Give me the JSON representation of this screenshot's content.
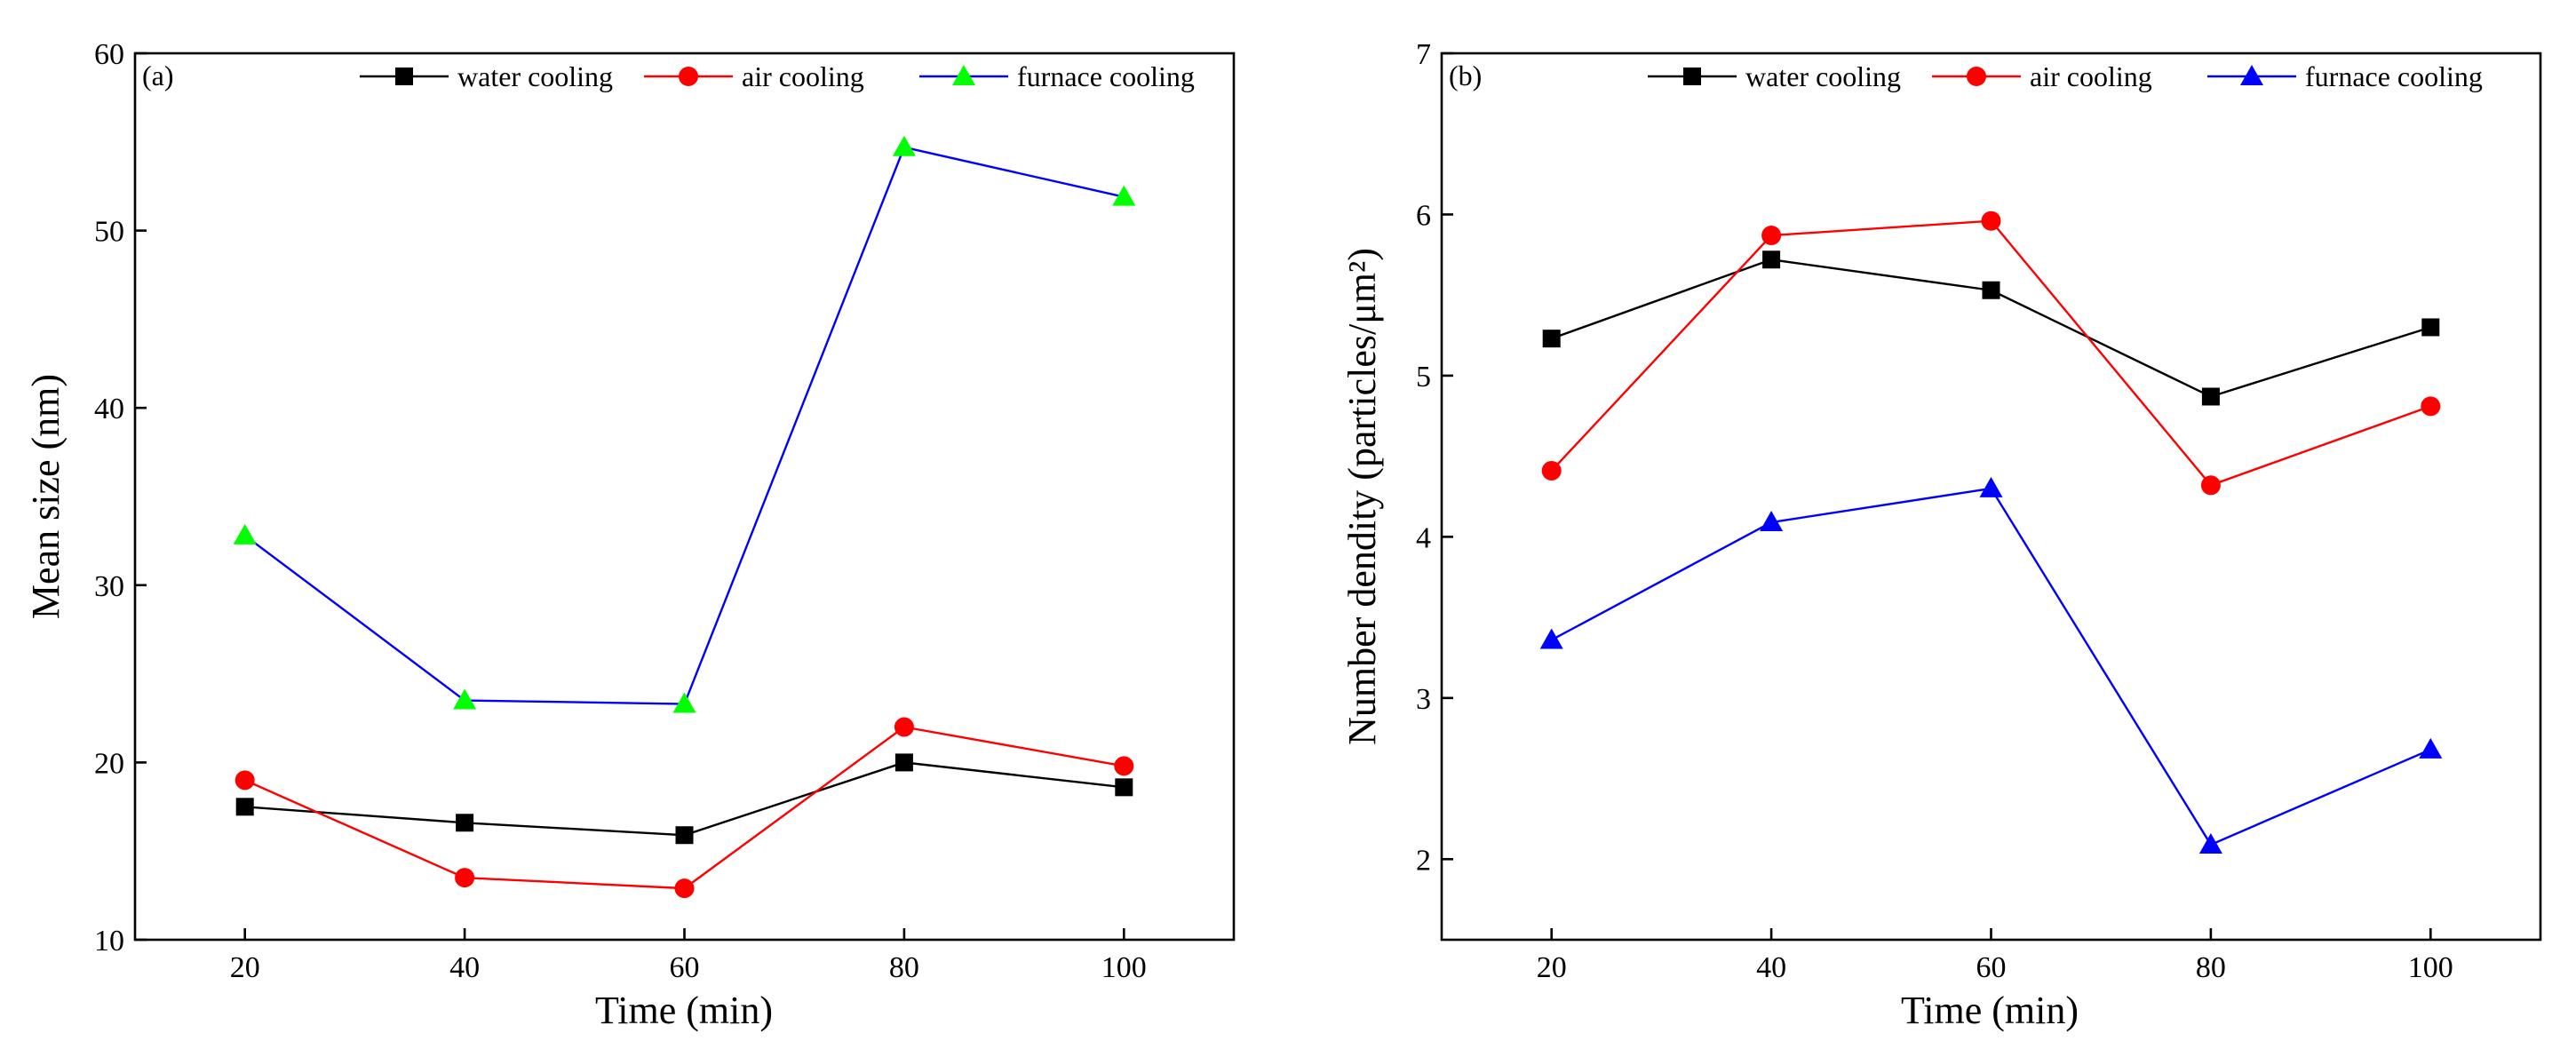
{
  "chart_data": [
    {
      "type": "line",
      "panel_label": "(a)",
      "title": "",
      "xlabel": "Time (min)",
      "ylabel": "Mean size (nm)",
      "x": [
        20,
        40,
        60,
        80,
        100
      ],
      "xticks": [
        "20",
        "40",
        "60",
        "80",
        "100"
      ],
      "xlim": [
        10,
        110
      ],
      "ylim": [
        10,
        60
      ],
      "yticks": [
        "10",
        "20",
        "30",
        "40",
        "50",
        "60"
      ],
      "legend_position": "top",
      "series": [
        {
          "name": "water cooling",
          "marker": "square",
          "line_color": "#000000",
          "marker_color": "#000000",
          "values": [
            17.5,
            16.6,
            15.9,
            20.0,
            18.6
          ]
        },
        {
          "name": "air cooling",
          "marker": "circle",
          "line_color": "#ff0000",
          "marker_color": "#ff0000",
          "values": [
            19.0,
            13.5,
            12.9,
            22.0,
            19.8
          ]
        },
        {
          "name": "furnace cooling",
          "marker": "triangle",
          "line_color": "#0000ff",
          "marker_color": "#00ff00",
          "values": [
            32.8,
            23.5,
            23.3,
            54.7,
            51.9
          ]
        }
      ]
    },
    {
      "type": "line",
      "panel_label": "(b)",
      "title": "",
      "xlabel": "Time (min)",
      "ylabel": "Number dendity (particles/μm²)",
      "x": [
        20,
        40,
        60,
        80,
        100
      ],
      "xticks": [
        "20",
        "40",
        "60",
        "80",
        "100"
      ],
      "xlim": [
        10,
        110
      ],
      "ylim": [
        1.5,
        7
      ],
      "yticks": [
        "2",
        "3",
        "4",
        "5",
        "6",
        "7"
      ],
      "legend_position": "top",
      "series": [
        {
          "name": "water cooling",
          "marker": "square",
          "line_color": "#000000",
          "marker_color": "#000000",
          "values": [
            5.23,
            5.72,
            5.53,
            4.87,
            5.3
          ]
        },
        {
          "name": "air cooling",
          "marker": "circle",
          "line_color": "#ff0000",
          "marker_color": "#ff0000",
          "values": [
            4.41,
            5.87,
            5.96,
            4.32,
            4.81
          ]
        },
        {
          "name": "furnace cooling",
          "marker": "triangle",
          "line_color": "#0000ff",
          "marker_color": "#0000ff",
          "values": [
            3.36,
            4.09,
            4.3,
            2.09,
            2.68
          ]
        }
      ]
    }
  ]
}
